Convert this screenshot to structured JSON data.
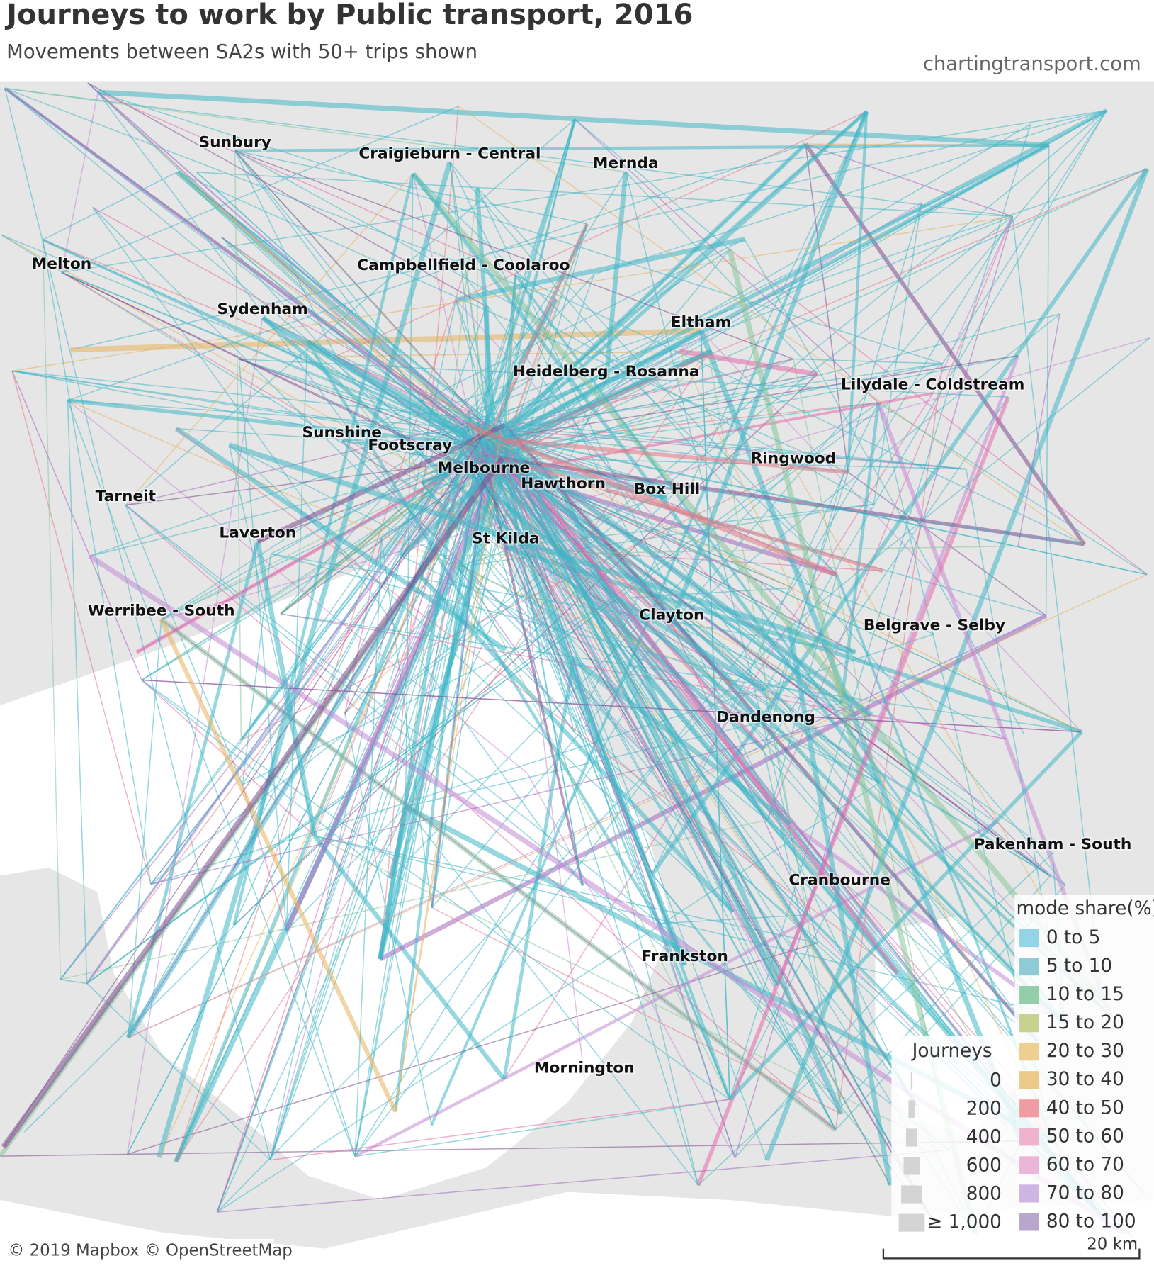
{
  "header": {
    "title": "Journeys to work by Public transport, 2016",
    "subtitle": "Movements between SA2s with 50+ trips shown",
    "source": "chartingtransport.com"
  },
  "places": [
    "Sunbury",
    "Craigieburn - Central",
    "Mernda",
    "Melton",
    "Campbellfield - Coolaroo",
    "Sydenham",
    "Eltham",
    "Heidelberg - Rosanna",
    "Lilydale - Coldstream",
    "Sunshine",
    "Footscray",
    "Ringwood",
    "Melbourne",
    "Hawthorn",
    "Box Hill",
    "Tarneit",
    "Laverton",
    "St Kilda",
    "Werribee - South",
    "Clayton",
    "Belgrave - Selby",
    "Dandenong",
    "Pakenham - South",
    "Cranbourne",
    "Frankston",
    "Mornington"
  ],
  "mode_legend": {
    "title": "mode share(%)",
    "items": [
      {
        "label": "0 to 5",
        "color": "#93d5e7"
      },
      {
        "label": "5 to 10",
        "color": "#8ecbd6"
      },
      {
        "label": "10 to 15",
        "color": "#93cda9"
      },
      {
        "label": "15 to 20",
        "color": "#c7d190"
      },
      {
        "label": "20 to 30",
        "color": "#eecf90"
      },
      {
        "label": "30 to 40",
        "color": "#ebca88"
      },
      {
        "label": "40 to 50",
        "color": "#ef9da2"
      },
      {
        "label": "50 to 60",
        "color": "#efb3d0"
      },
      {
        "label": "60 to 70",
        "color": "#ebb7d8"
      },
      {
        "label": "70 to 80",
        "color": "#ceb5e2"
      },
      {
        "label": "80 to 100",
        "color": "#b8a6cd"
      }
    ]
  },
  "size_legend": {
    "title": "Journeys",
    "values": [
      0,
      200,
      400,
      600,
      800,
      {
        "value": 1000,
        "label": "≥ 1,000"
      }
    ]
  },
  "attribution": "© 2019 Mapbox © OpenStreetMap",
  "scale_label": "20 km"
}
